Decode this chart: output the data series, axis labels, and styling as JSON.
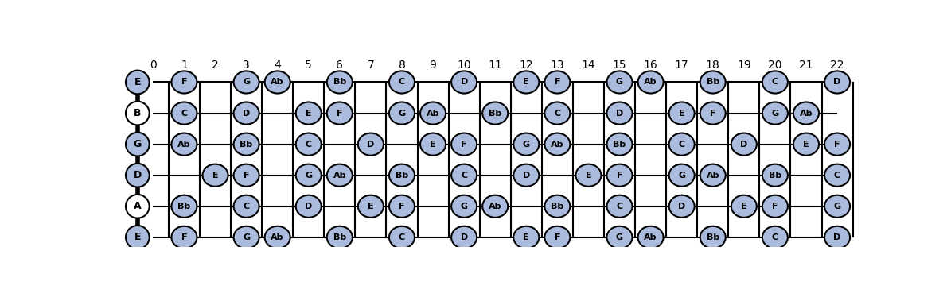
{
  "fret_count": 23,
  "string_labels_top_to_bottom": [
    "E",
    "B",
    "G",
    "D",
    "A",
    "E"
  ],
  "open_notes_midi_top_to_bottom": [
    64,
    59,
    55,
    50,
    45,
    40
  ],
  "scale_note_set": [
    4,
    5,
    7,
    8,
    10,
    0,
    2
  ],
  "scale_note_names_map": {
    "4": "E",
    "5": "F",
    "7": "G",
    "8": "Ab",
    "10": "Bb",
    "0": "C",
    "2": "D"
  },
  "bg_color": "#ffffff",
  "circle_fill_scale": "#aabbdd",
  "circle_fill_open": "#ffffff",
  "circle_edge": "#000000",
  "text_color": "#000000",
  "line_color": "#000000",
  "figsize": [
    11.95,
    3.79
  ],
  "dpi": 100,
  "fret_label_fontsize": 10,
  "note_fontsize": 8,
  "string_label_fontsize": 11
}
